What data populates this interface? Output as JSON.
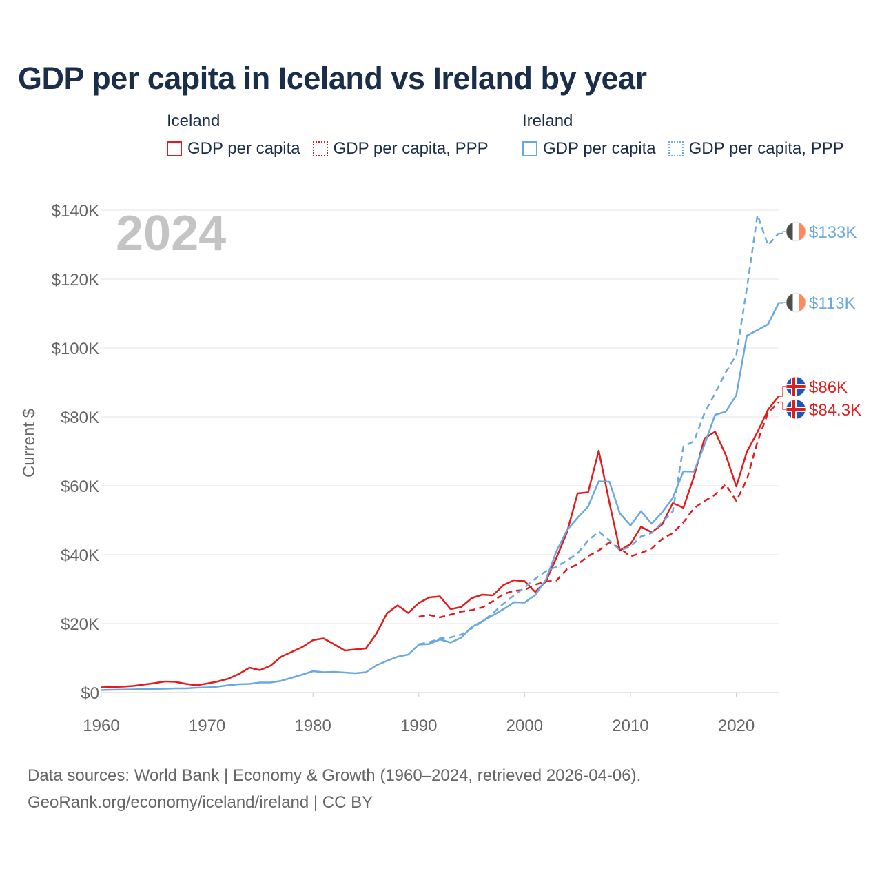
{
  "title": "GDP per capita in Iceland vs Ireland by year",
  "legend": {
    "groups": [
      {
        "name": "Iceland",
        "items": [
          {
            "label": "GDP per capita",
            "style": "solid",
            "color": "#e31b1b"
          },
          {
            "label": "GDP per capita, PPP",
            "style": "dashed",
            "color": "#e31b1b"
          }
        ]
      },
      {
        "name": "Ireland",
        "items": [
          {
            "label": "GDP per capita",
            "style": "solid",
            "color": "#6aa8e0"
          },
          {
            "label": "GDP per capita, PPP",
            "style": "dashed",
            "color": "#6aa8e0"
          }
        ]
      }
    ]
  },
  "year_label": "2024",
  "chart_data": {
    "type": "line",
    "title": "GDP per capita in Iceland vs Ireland by year",
    "xlabel": "",
    "ylabel": "Current $",
    "xlim": [
      1960,
      2024
    ],
    "ylim": [
      0,
      140000
    ],
    "x_ticks": [
      1960,
      1970,
      1980,
      1990,
      2000,
      2010,
      2020
    ],
    "y_ticks": [
      0,
      20000,
      40000,
      60000,
      80000,
      100000,
      120000,
      140000
    ],
    "y_tick_labels": [
      "$0",
      "$20K",
      "$40K",
      "$60K",
      "$80K",
      "$100K",
      "$120K",
      "$140K"
    ],
    "grid": true,
    "series": [
      {
        "name": "Iceland GDP per capita",
        "country": "Iceland",
        "style": "solid",
        "color": "#e31b1b",
        "start_year": 1960,
        "values": [
          1500,
          1600,
          1700,
          1900,
          2300,
          2700,
          3200,
          3100,
          2500,
          2100,
          2600,
          3200,
          4000,
          5400,
          7200,
          6500,
          7800,
          10400,
          11800,
          13200,
          15200,
          15700,
          14000,
          12200,
          12500,
          12800,
          17100,
          23000,
          25300,
          23100,
          26000,
          27600,
          27900,
          24200,
          24800,
          27400,
          28400,
          28200,
          31200,
          32600,
          32300,
          29200,
          32200,
          39100,
          46500,
          57800,
          58100,
          70200,
          55200,
          41200,
          43100,
          48100,
          46500,
          48800,
          55000,
          53600,
          62700,
          73800,
          75700,
          69000,
          59800,
          69900,
          75600,
          82100,
          86000
        ],
        "end_label": "$86K"
      },
      {
        "name": "Iceland GDP per capita, PPP",
        "country": "Iceland",
        "style": "dashed",
        "color": "#e31b1b",
        "start_year": 1990,
        "values": [
          22000,
          22500,
          21800,
          22600,
          23500,
          23900,
          24700,
          26500,
          28600,
          29500,
          29800,
          31300,
          32200,
          32500,
          35800,
          37200,
          39600,
          41200,
          43600,
          41900,
          39500,
          40500,
          41800,
          44600,
          46300,
          49400,
          53500,
          55600,
          57400,
          60400,
          55600,
          61800,
          72800,
          81200,
          84300
        ],
        "end_label": "$84.3K"
      },
      {
        "name": "Ireland GDP per capita",
        "country": "Ireland",
        "style": "solid",
        "color": "#6aa8e0",
        "start_year": 1960,
        "values": [
          700,
          800,
          850,
          900,
          1000,
          1050,
          1100,
          1200,
          1200,
          1400,
          1500,
          1700,
          2100,
          2400,
          2500,
          2900,
          2900,
          3400,
          4300,
          5200,
          6200,
          5900,
          6000,
          5800,
          5600,
          5900,
          7900,
          9200,
          10400,
          11000,
          13900,
          14100,
          15400,
          14500,
          15900,
          19000,
          20700,
          22400,
          24200,
          26200,
          26100,
          28300,
          32700,
          41000,
          47100,
          50700,
          54000,
          61300,
          61200,
          52000,
          48500,
          52600,
          49000,
          52300,
          56500,
          64200,
          64100,
          72000,
          80600,
          81500,
          86300,
          103600,
          105200,
          106900,
          113000
        ],
        "end_label": "$113K"
      },
      {
        "name": "Ireland GDP per capita, PPP",
        "country": "Ireland",
        "style": "dashed",
        "color": "#6aa8e0",
        "start_year": 1990,
        "values": [
          14000,
          14600,
          15700,
          16000,
          16800,
          18600,
          20600,
          23000,
          25800,
          28200,
          30500,
          33000,
          35200,
          36500,
          38300,
          40400,
          44100,
          46700,
          44200,
          41300,
          42300,
          45300,
          46300,
          49400,
          52600,
          71400,
          72900,
          81200,
          86900,
          92900,
          98000,
          117300,
          138600,
          129800,
          133300
        ],
        "end_label": "$133K"
      }
    ]
  },
  "footer": {
    "line1": "Data sources: World Bank | Economy & Growth (1960–2024, retrieved 2026-04-06).",
    "line2": "GeoRank.org/economy/iceland/ireland | CC BY"
  }
}
